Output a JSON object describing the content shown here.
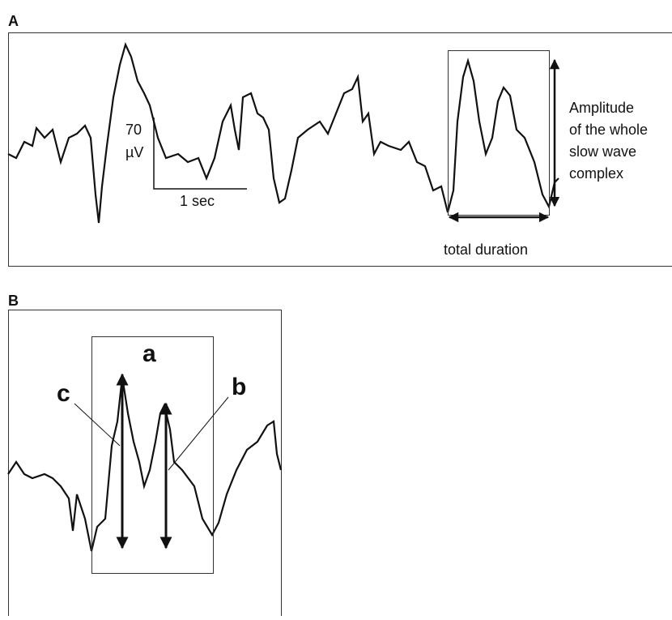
{
  "panel_a": {
    "label": "A",
    "scale_amplitude": "70",
    "scale_unit": "µV",
    "scale_time": "1 sec",
    "amplitude_label": [
      "Amplitude",
      "of the whole",
      "slow wave",
      "complex"
    ],
    "duration_label": "total duration"
  },
  "panel_b": {
    "label": "B",
    "marks": {
      "a": "a",
      "b": "b",
      "c": "c"
    }
  }
}
